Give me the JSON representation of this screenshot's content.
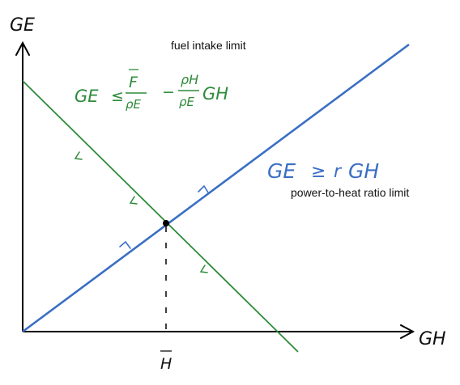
{
  "labels": {
    "y_axis": "GE",
    "x_axis": "GH",
    "h_bar": "H",
    "fuel_limit": "fuel intake limit",
    "ratio_limit": "power-to-heat ratio limit"
  },
  "equations": {
    "fuel": {
      "lhs": "GE",
      "relation": "≤",
      "fuel_numerator": "F",
      "fuel_denominator": "ρE",
      "minus": "−",
      "heat_numerator": "ρH",
      "heat_denominator": "ρE",
      "heat_variable": "GH"
    },
    "ratio": {
      "lhs": "GE",
      "relation": "≥",
      "coefficient": "r",
      "rhs_variable": "GH"
    }
  },
  "colors": {
    "axes": "#000000",
    "fuel_line": "#2e8b3a",
    "ratio_line": "#3a6fc4",
    "annotation_text": "#111111",
    "intersection_point": "#000000"
  }
}
